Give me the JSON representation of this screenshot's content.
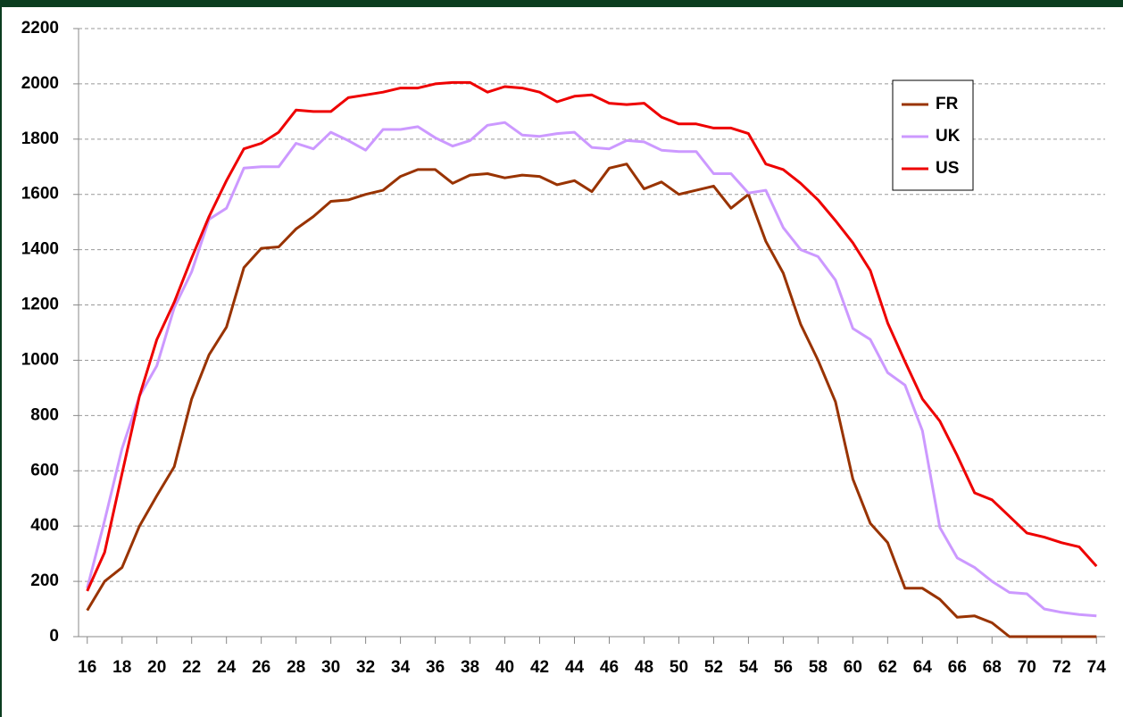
{
  "chart_data": {
    "type": "line",
    "x": [
      16,
      17,
      18,
      19,
      20,
      21,
      22,
      23,
      24,
      25,
      26,
      27,
      28,
      29,
      30,
      31,
      32,
      33,
      34,
      35,
      36,
      37,
      38,
      39,
      40,
      41,
      42,
      43,
      44,
      45,
      46,
      47,
      48,
      49,
      50,
      51,
      52,
      53,
      54,
      55,
      56,
      57,
      58,
      59,
      60,
      61,
      62,
      63,
      64,
      65,
      66,
      67,
      68,
      69,
      70,
      71,
      72,
      73,
      74
    ],
    "series": [
      {
        "name": "FR",
        "color": "#993300",
        "values": [
          95,
          200,
          250,
          400,
          510,
          615,
          860,
          1020,
          1120,
          1335,
          1405,
          1410,
          1475,
          1520,
          1575,
          1580,
          1600,
          1615,
          1665,
          1690,
          1690,
          1640,
          1670,
          1675,
          1660,
          1670,
          1665,
          1635,
          1650,
          1610,
          1695,
          1710,
          1620,
          1645,
          1600,
          1615,
          1630,
          1550,
          1600,
          1430,
          1315,
          1130,
          1000,
          850,
          570,
          410,
          340,
          175,
          175,
          135,
          70,
          75,
          50,
          0,
          0,
          0,
          0,
          0,
          0
        ]
      },
      {
        "name": "UK",
        "color": "#cc99ff",
        "values": [
          175,
          420,
          680,
          870,
          980,
          1190,
          1320,
          1510,
          1550,
          1695,
          1700,
          1700,
          1785,
          1765,
          1825,
          1795,
          1760,
          1835,
          1835,
          1845,
          1805,
          1775,
          1795,
          1850,
          1860,
          1815,
          1810,
          1820,
          1825,
          1770,
          1765,
          1795,
          1790,
          1760,
          1755,
          1755,
          1675,
          1675,
          1605,
          1615,
          1480,
          1400,
          1375,
          1290,
          1115,
          1075,
          955,
          910,
          745,
          395,
          285,
          250,
          200,
          160,
          155,
          100,
          88,
          80,
          75
        ]
      },
      {
        "name": "US",
        "color": "#ee0000",
        "values": [
          165,
          305,
          590,
          870,
          1075,
          1210,
          1370,
          1520,
          1650,
          1765,
          1785,
          1825,
          1905,
          1900,
          1900,
          1950,
          1960,
          1970,
          1985,
          1985,
          2000,
          2005,
          2005,
          1970,
          1990,
          1985,
          1970,
          1935,
          1955,
          1960,
          1930,
          1925,
          1930,
          1880,
          1855,
          1855,
          1840,
          1840,
          1820,
          1710,
          1690,
          1640,
          1580,
          1505,
          1425,
          1325,
          1135,
          995,
          860,
          780,
          655,
          520,
          495,
          435,
          375,
          360,
          340,
          325,
          255
        ]
      }
    ],
    "xlim": [
      15.5,
      74.5
    ],
    "xticks": [
      16,
      18,
      20,
      22,
      24,
      26,
      28,
      30,
      32,
      34,
      36,
      38,
      40,
      42,
      44,
      46,
      48,
      50,
      52,
      54,
      56,
      58,
      60,
      62,
      64,
      66,
      68,
      70,
      72,
      74
    ],
    "ylim": [
      0,
      2200
    ],
    "yticks": [
      0,
      200,
      400,
      600,
      800,
      1000,
      1200,
      1400,
      1600,
      1800,
      2000,
      2200
    ],
    "grid": true,
    "legend": "upper right"
  }
}
